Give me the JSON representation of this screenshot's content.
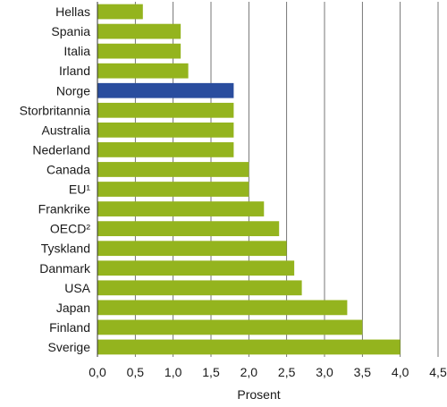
{
  "chart_data": {
    "type": "bar",
    "orientation": "horizontal",
    "title": "",
    "xlabel": "Prosent",
    "ylabel": "",
    "xlim": [
      0,
      4.5
    ],
    "grid": true,
    "categories": [
      "Hellas",
      "Spania",
      "Italia",
      "Irland",
      "Norge",
      "Storbritannia",
      "Australia",
      "Nederland",
      "Canada",
      "EU¹",
      "Frankrike",
      "OECD²",
      "Tyskland",
      "Danmark",
      "USA",
      "Japan",
      "Finland",
      "Sverige"
    ],
    "values": [
      0.6,
      1.1,
      1.1,
      1.2,
      1.8,
      1.8,
      1.8,
      1.8,
      2.0,
      2.0,
      2.2,
      2.4,
      2.5,
      2.6,
      2.7,
      3.3,
      3.5,
      4.0
    ],
    "x_ticks": [
      0,
      0.5,
      1.0,
      1.5,
      2.0,
      2.5,
      3.0,
      3.5,
      4.0,
      4.5
    ],
    "x_tick_labels": [
      "0,0",
      "0,5",
      "1,0",
      "1,5",
      "2,0",
      "2,5",
      "3,0",
      "3,5",
      "4,0",
      "4,5"
    ],
    "bar_color": "#94b41e",
    "highlight_category": "Norge",
    "highlight_color": "#2a4d9e"
  }
}
